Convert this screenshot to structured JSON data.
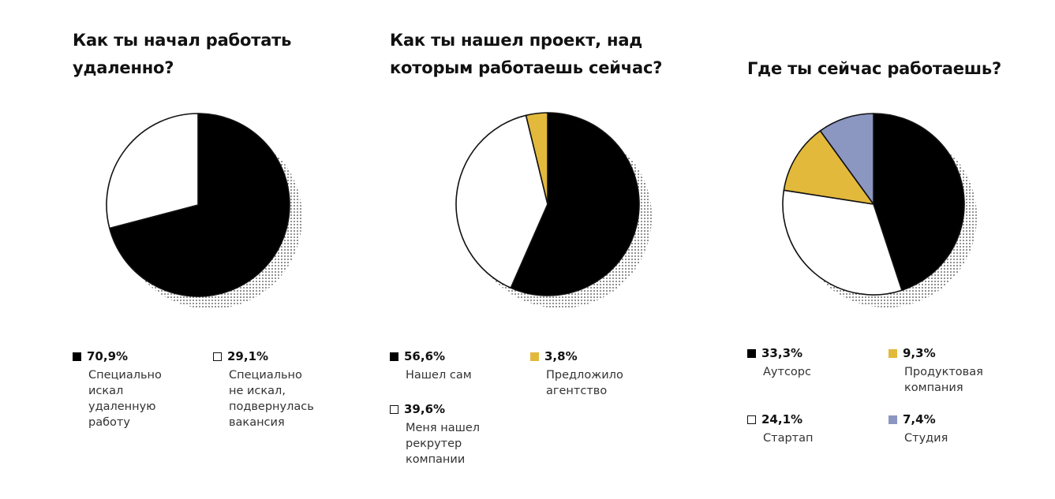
{
  "chart_data": [
    {
      "type": "pie",
      "title": "Как ты начал работать\nудаленно?",
      "slices": [
        {
          "label": "Специально\nискал\nудаленную\nработу",
          "value": 70.9,
          "value_text": "70,9%",
          "color": "#000000"
        },
        {
          "label": "Специально\nне искал,\nподвернулась\nвакансия",
          "value": 29.1,
          "value_text": "29,1%",
          "color": "#ffffff"
        }
      ]
    },
    {
      "type": "pie",
      "title": "Как ты нашел проект, над\nкоторым работаешь сейчас?",
      "slices": [
        {
          "label": "Нашел сам",
          "value": 56.6,
          "value_text": "56,6%",
          "color": "#000000"
        },
        {
          "label": "Меня нашел\nрекрутер\nкомпании",
          "value": 39.6,
          "value_text": "39,6%",
          "color": "#ffffff"
        },
        {
          "label": "Предложило\nагентство",
          "value": 3.8,
          "value_text": "3,8%",
          "color": "#e3b93c"
        }
      ]
    },
    {
      "type": "pie",
      "title": "Где ты сейчас работаешь?",
      "slices": [
        {
          "label": "Аутсорс",
          "value": 33.3,
          "value_text": "33,3%",
          "color": "#000000"
        },
        {
          "label": "Стартап",
          "value": 24.1,
          "value_text": "24,1%",
          "color": "#ffffff"
        },
        {
          "label": "Продуктовая\nкомпания",
          "value": 9.3,
          "value_text": "9,3%",
          "color": "#e3b93c"
        },
        {
          "label": "Студия",
          "value": 7.4,
          "value_text": "7,4%",
          "color": "#8b96c1"
        }
      ]
    }
  ]
}
